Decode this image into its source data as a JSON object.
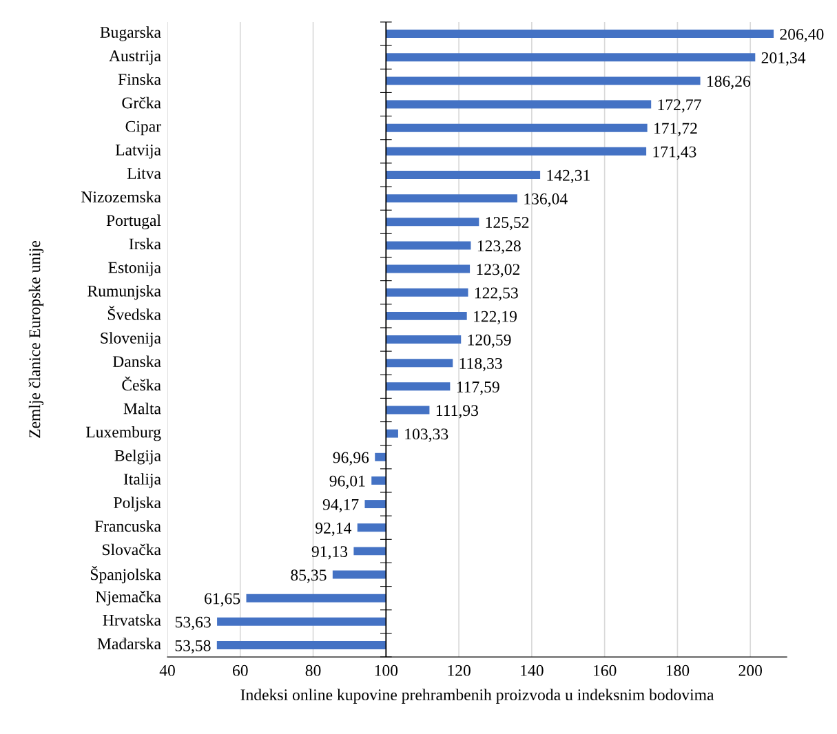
{
  "chart_data": {
    "type": "bar",
    "orientation": "horizontal",
    "xlabel": "Indeksi online kupovine prehrambenih proizvoda u indeksnim bodovima",
    "ylabel": "Zemlje članice Europske unije",
    "categories": [
      "Bugarska",
      "Austrija",
      "Finska",
      "Grčka",
      "Cipar",
      "Latvija",
      "Litva",
      "Nizozemska",
      "Portugal",
      "Irska",
      "Estonija",
      "Rumunjska",
      "Švedska",
      "Slovenija",
      "Danska",
      "Češka",
      "Malta",
      "Luxemburg",
      "Belgija",
      "Italija",
      "Poljska",
      "Francuska",
      "Slovačka",
      "Španjolska",
      "Njemačka",
      "Hrvatska",
      "Mađarska"
    ],
    "base": [
      100,
      100,
      100,
      100,
      100,
      100,
      100,
      100,
      100,
      100,
      100,
      100,
      100,
      100,
      100,
      100,
      100,
      100,
      100,
      100,
      100,
      100,
      100,
      100,
      100,
      100,
      100
    ],
    "values": [
      106.4,
      101.34,
      86.26,
      72.77,
      71.72,
      71.43,
      42.31,
      36.04,
      25.52,
      23.28,
      23.02,
      22.53,
      22.19,
      20.59,
      18.33,
      17.59,
      11.93,
      3.33,
      -3.04,
      -3.99,
      -5.83,
      -7.86,
      -8.87,
      -14.65,
      -38.35,
      -46.37,
      -46.42
    ],
    "value_labels": [
      "206,40",
      "201,34",
      "186,26",
      "172,77",
      "171,72",
      "171,43",
      "142,31",
      "136,04",
      "125,52",
      "123,28",
      "123,02",
      "122,53",
      "122,19",
      "120,59",
      "118,33",
      "117,59",
      "111,93",
      "103,33",
      "96,96",
      "96,01",
      "94,17",
      "92,14",
      "91,13",
      "85,35",
      "61,65",
      "53,63",
      "53,58"
    ],
    "color": "#4472c4",
    "ref_lines": [
      {
        "axis": "x",
        "value": 100,
        "color": "#000000"
      }
    ],
    "xlim": [
      40,
      210
    ],
    "xticks": [
      40,
      60,
      80,
      100,
      120,
      140,
      160,
      180,
      200
    ],
    "grid": "x",
    "legend": false
  }
}
